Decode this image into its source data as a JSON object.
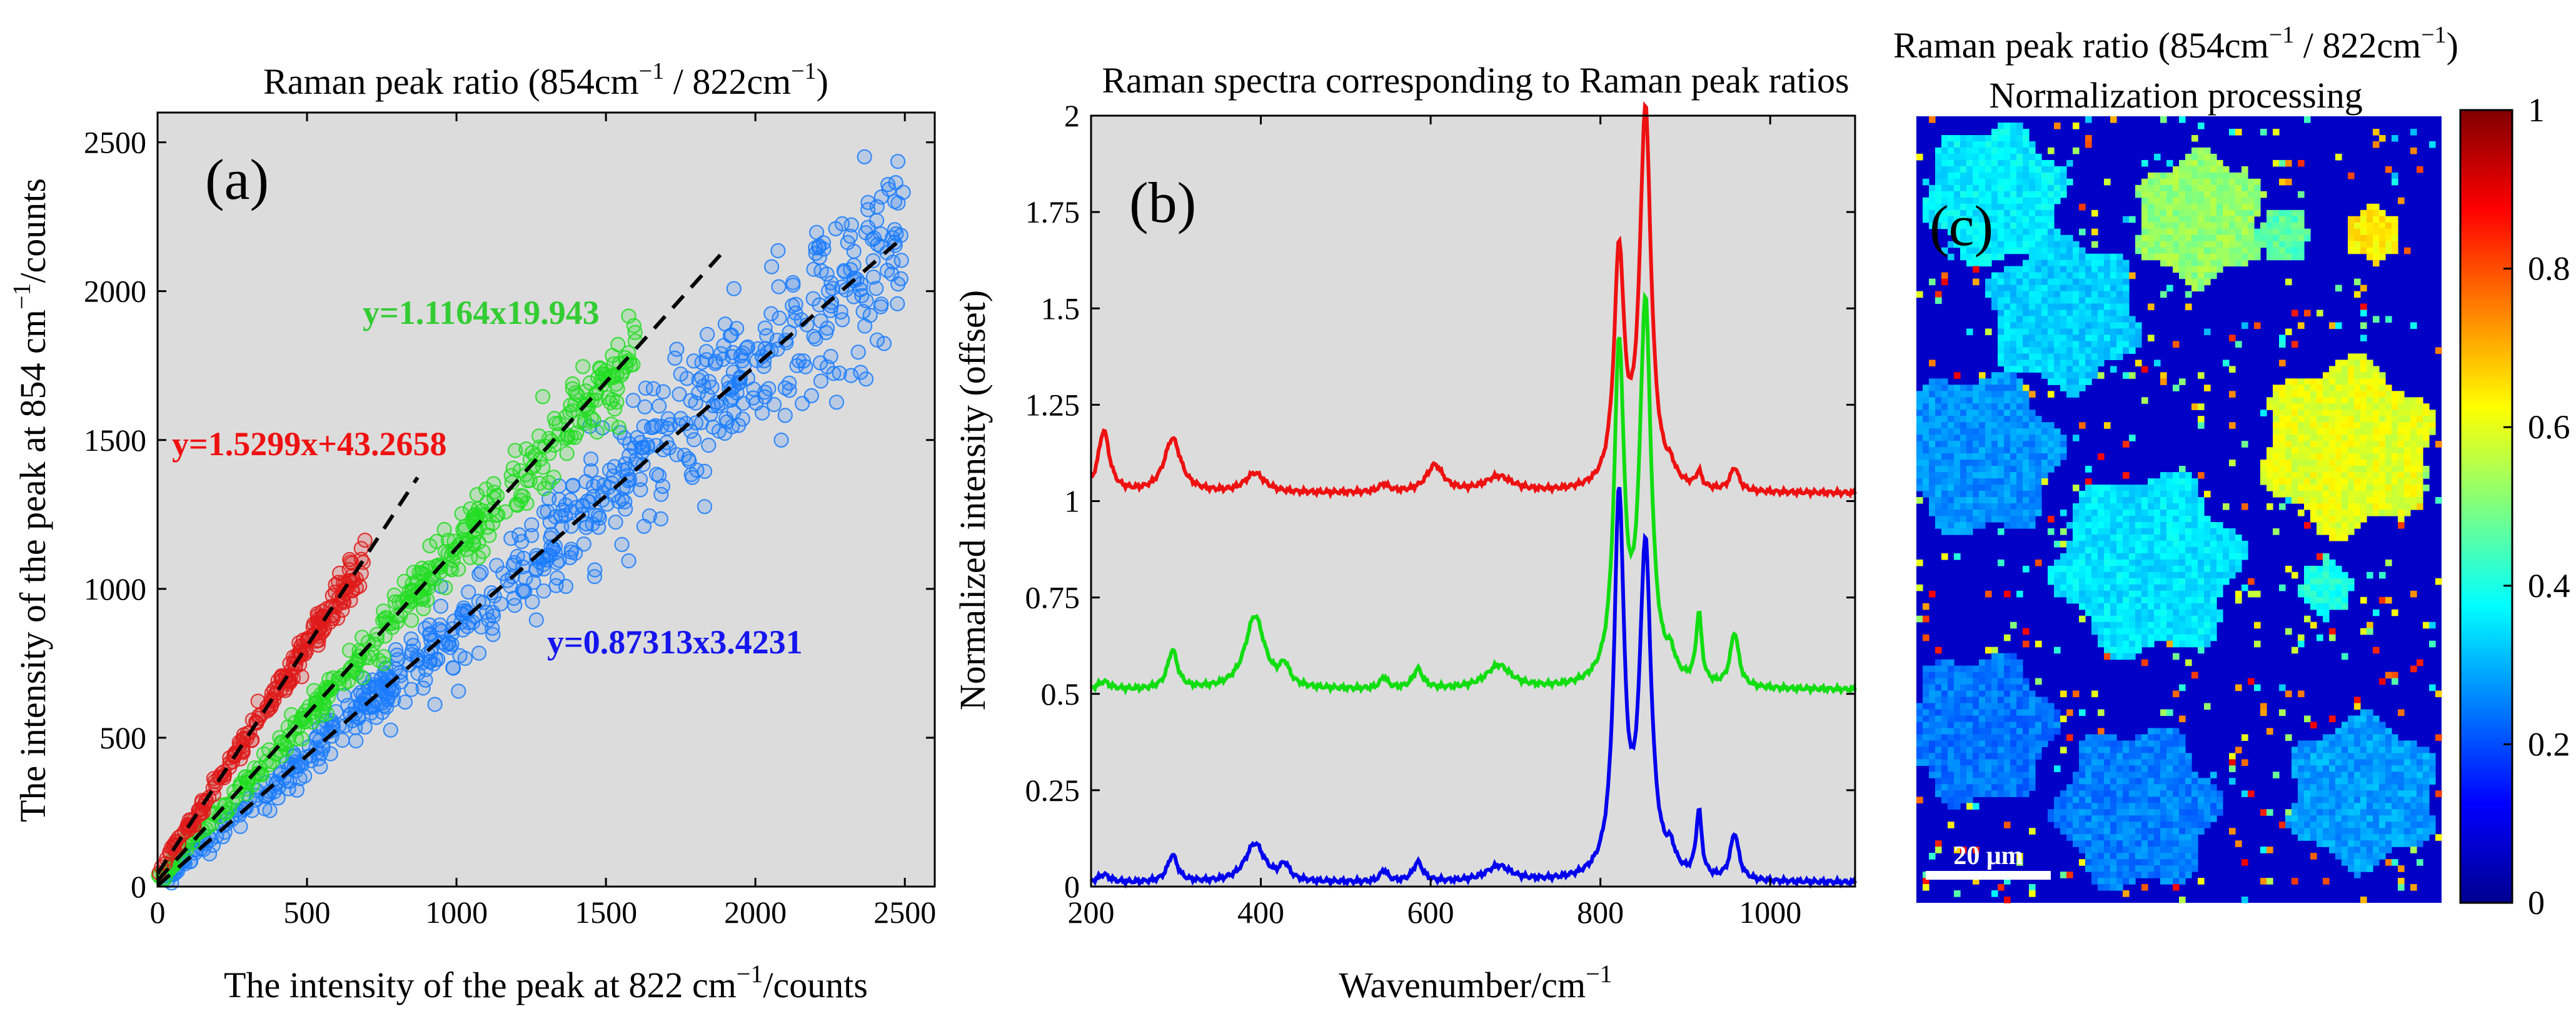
{
  "chart_data": [
    {
      "panel": "(a)",
      "type": "scatter",
      "title": "Raman peak ratio (854cm",
      "title_sup": "−1",
      "title_end": " / 822cm",
      "title_end_sup": "−1",
      "title_close": ")",
      "xlabel": "The intensity of the peak at 822 cm",
      "xlabel_sup": "−1",
      "xlabel_end": "/counts",
      "ylabel": "The intensity of the peak at 854 cm",
      "ylabel_sup": "−1",
      "ylabel_end": "/counts",
      "xlim": [
        0,
        2600
      ],
      "ylim": [
        0,
        2600
      ],
      "xticks": [
        0,
        500,
        1000,
        1500,
        2000,
        2500
      ],
      "yticks": [
        0,
        500,
        1000,
        1500,
        2000,
        2500
      ],
      "background": "#dcdcdc",
      "series": [
        {
          "name": "blue",
          "color": "#1a7cff",
          "slope": 0.87313,
          "intercept": 3.4231,
          "x_range": [
            0,
            2500
          ],
          "spread": 0.13,
          "count": 650
        },
        {
          "name": "green",
          "color": "#22dd22",
          "slope": 1.1164,
          "intercept": 19.943,
          "x_range": [
            0,
            1600
          ],
          "spread": 0.1,
          "count": 380
        },
        {
          "name": "red",
          "color": "#e01a1a",
          "slope": 1.5299,
          "intercept": 43.2658,
          "x_range": [
            0,
            700
          ],
          "spread": 0.09,
          "count": 220
        }
      ],
      "fit_lines": [
        {
          "slope": 1.5299,
          "intercept": 43.2658,
          "x_range": [
            0,
            870
          ]
        },
        {
          "slope": 1.1164,
          "intercept": 19.943,
          "x_range": [
            0,
            1900
          ]
        },
        {
          "slope": 0.87313,
          "intercept": 3.4231,
          "x_range": [
            0,
            2480
          ]
        }
      ],
      "annotations": [
        {
          "text": "y=1.1164x19.943",
          "color": "#33cc33"
        },
        {
          "text": "y=1.5299x+43.2658",
          "color": "#ee1111"
        },
        {
          "text": "y=0.87313x3.4231",
          "color": "#1515ee"
        }
      ]
    },
    {
      "panel": "(b)",
      "type": "line",
      "title": "Raman spectra corresponding to Raman peak ratios",
      "xlabel": "Wavenumber/cm",
      "xlabel_sup": "−1",
      "ylabel": "Normalized intensity (offset)",
      "xlim": [
        200,
        1100
      ],
      "ylim": [
        0,
        2
      ],
      "xticks": [
        200,
        400,
        600,
        800,
        1000
      ],
      "yticks": [
        0,
        0.25,
        0.5,
        0.75,
        1,
        1.25,
        1.5,
        1.75,
        2
      ],
      "ytick_labels": [
        "0",
        "0.25",
        "0.5",
        "0.75",
        "1",
        "1.25",
        "1.5",
        "1.75",
        "2"
      ],
      "background": "#dcdcdc",
      "series": [
        {
          "name": "blue",
          "color": "#0000ee",
          "baseline": 0.01,
          "peaks": [
            [
              215,
              0.02,
              8
            ],
            [
              296,
              0.07,
              7
            ],
            [
              393,
              0.1,
              14
            ],
            [
              428,
              0.04,
              7
            ],
            [
              545,
              0.03,
              5
            ],
            [
              585,
              0.05,
              7
            ],
            [
              680,
              0.04,
              18
            ],
            [
              822,
              0.98,
              7
            ],
            [
              853,
              0.85,
              8
            ],
            [
              883,
              0.05,
              6
            ],
            [
              916,
              0.17,
              4
            ],
            [
              958,
              0.12,
              6
            ]
          ]
        },
        {
          "name": "green",
          "color": "#11dd11",
          "baseline": 0.51,
          "peaks": [
            [
              215,
              0.02,
              8
            ],
            [
              296,
              0.1,
              7
            ],
            [
              393,
              0.19,
              14
            ],
            [
              428,
              0.05,
              7
            ],
            [
              545,
              0.03,
              5
            ],
            [
              585,
              0.05,
              7
            ],
            [
              680,
              0.06,
              18
            ],
            [
              822,
              0.86,
              7
            ],
            [
              853,
              0.98,
              8
            ],
            [
              883,
              0.05,
              6
            ],
            [
              916,
              0.18,
              4
            ],
            [
              958,
              0.14,
              6
            ]
          ]
        },
        {
          "name": "red",
          "color": "#ee1111",
          "baseline": 1.02,
          "peaks": [
            [
              215,
              0.16,
              8
            ],
            [
              296,
              0.14,
              12
            ],
            [
              393,
              0.05,
              14
            ],
            [
              545,
              0.02,
              7
            ],
            [
              605,
              0.07,
              12
            ],
            [
              680,
              0.04,
              20
            ],
            [
              822,
              0.6,
              7
            ],
            [
              853,
              0.98,
              8
            ],
            [
              883,
              0.03,
              6
            ],
            [
              916,
              0.04,
              4
            ],
            [
              958,
              0.06,
              6
            ]
          ]
        }
      ]
    },
    {
      "panel": "(c)",
      "type": "heatmap",
      "title_line1": "Raman peak ratio (854cm",
      "title_line1_sup": "−1",
      "title_line1_end": " / 822cm",
      "title_line1_end_sup": "−1",
      "title_line1_close": ")",
      "title_line2": "Normalization processing",
      "colorbar_ticks": [
        0,
        0.2,
        0.4,
        0.6,
        0.8,
        1
      ],
      "colorbar_range": [
        0,
        1
      ],
      "colormap": "jet",
      "grains": [
        {
          "cx": 0.15,
          "cy": 0.1,
          "r": 0.13,
          "value": 0.36
        },
        {
          "cx": 0.54,
          "cy": 0.13,
          "r": 0.12,
          "value": 0.52
        },
        {
          "cx": 0.7,
          "cy": 0.15,
          "r": 0.05,
          "value": 0.46
        },
        {
          "cx": 0.87,
          "cy": 0.15,
          "r": 0.05,
          "value": 0.64
        },
        {
          "cx": 0.28,
          "cy": 0.25,
          "r": 0.14,
          "value": 0.33
        },
        {
          "cx": 0.82,
          "cy": 0.42,
          "r": 0.16,
          "value": 0.6
        },
        {
          "cx": 0.12,
          "cy": 0.43,
          "r": 0.15,
          "value": 0.27
        },
        {
          "cx": 0.44,
          "cy": 0.57,
          "r": 0.17,
          "value": 0.35
        },
        {
          "cx": 0.78,
          "cy": 0.6,
          "r": 0.05,
          "value": 0.4
        },
        {
          "cx": 0.12,
          "cy": 0.78,
          "r": 0.14,
          "value": 0.24
        },
        {
          "cx": 0.42,
          "cy": 0.88,
          "r": 0.15,
          "value": 0.25
        },
        {
          "cx": 0.85,
          "cy": 0.86,
          "r": 0.14,
          "value": 0.28
        }
      ],
      "scalebar_label": "20 μm"
    }
  ]
}
